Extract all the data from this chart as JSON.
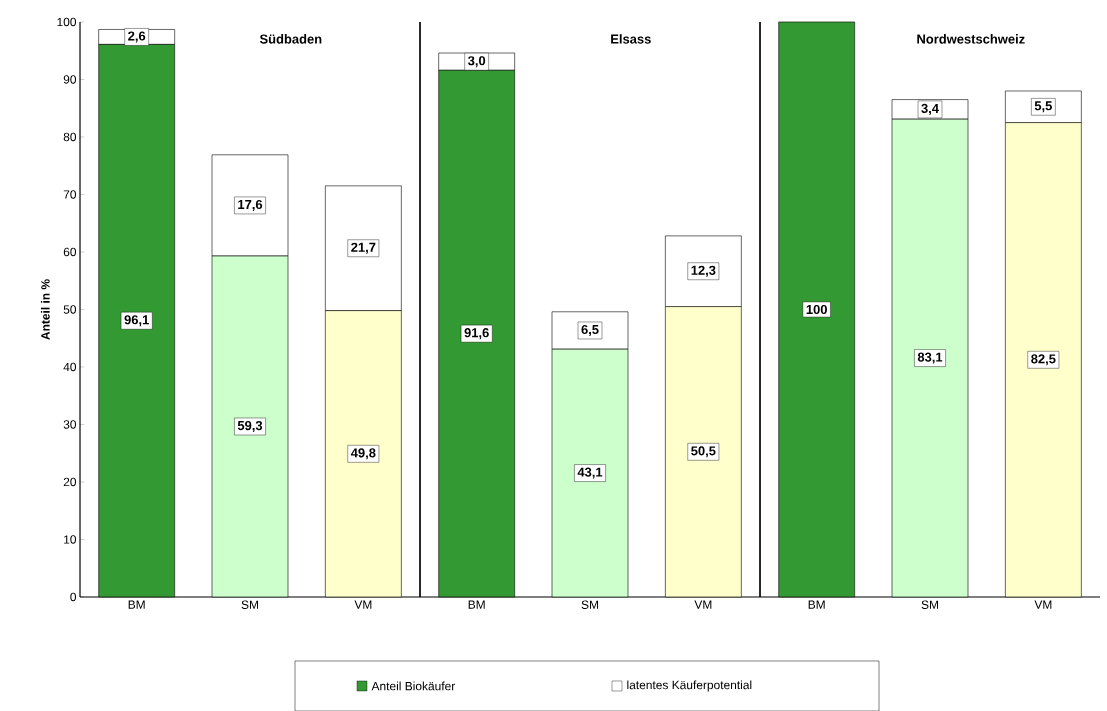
{
  "chart_data": [
    {
      "type": "bar",
      "title": "**Südbaden**",
      "ylabel": "**Anteil in %**",
      "categories": [
        "BM",
        "SM",
        "VM"
      ],
      "stacked": true,
      "ylim": [
        0,
        100
      ],
      "yticks": [
        0,
        10,
        20,
        30,
        40,
        50,
        60,
        70,
        80,
        90,
        100
      ],
      "legend": "bottom",
      "series": [
        {
          "name": "Anteil Biokäufer",
          "colors": [
            "#339933",
            "#ccffcc",
            "#ffffcc"
          ],
          "values": [
            96.1,
            59.3,
            49.8
          ],
          "value_labels": [
            "96,1",
            "59,3",
            "49,8"
          ]
        },
        {
          "name": "latentes Käuferpotential",
          "colors": [
            "#ffffff",
            "#ffffff",
            "#ffffff"
          ],
          "values": [
            2.6,
            17.6,
            21.7
          ],
          "value_labels": [
            "2,6",
            "17,6",
            "21,7"
          ]
        }
      ]
    },
    {
      "type": "bar",
      "title": "**Elsass**",
      "categories": [
        "BM",
        "SM",
        "VM"
      ],
      "stacked": true,
      "ylim": [
        0,
        100
      ],
      "tick_labels": "x",
      "series": [
        {
          "colors": [
            "#339933",
            "#ccffcc",
            "#ffffcc"
          ],
          "values": [
            91.6,
            43.1,
            50.5
          ],
          "value_labels": [
            "91,6",
            "43,1",
            "50,5"
          ]
        },
        {
          "colors": [
            "#ffffff",
            "#ffffff",
            "#ffffff"
          ],
          "values": [
            3.0,
            6.5,
            12.3
          ],
          "value_labels": [
            "3,0",
            "6,5",
            "12,3"
          ]
        }
      ]
    },
    {
      "type": "bar",
      "title": "**Nordwestschweiz**",
      "categories": [
        "BM",
        "SM",
        "VM"
      ],
      "stacked": true,
      "ylim": [
        0,
        100
      ],
      "tick_labels": "x",
      "series": [
        {
          "colors": [
            "#339933",
            "#ccffcc",
            "#ffffcc"
          ],
          "values": [
            100,
            83.1,
            82.5
          ],
          "value_labels": [
            "100",
            "83,1",
            "82,5"
          ]
        },
        {
          "colors": [
            "#ffffff",
            "#ffffff",
            "#ffffff"
          ],
          "values": [
            null,
            3.4,
            5.5
          ],
          "value_labels": [
            null,
            "3,4",
            "5,5"
          ]
        }
      ]
    }
  ]
}
